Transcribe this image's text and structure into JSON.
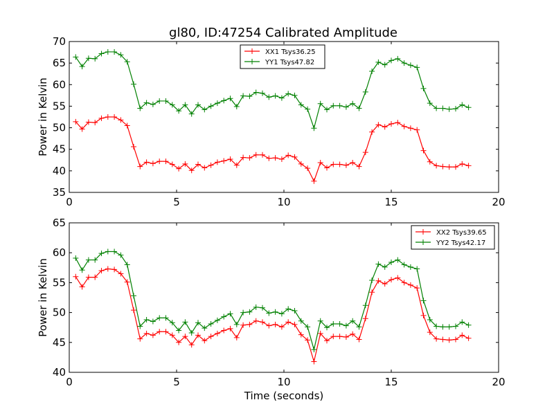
{
  "figure": {
    "title": "gl80, ID:47254 Calibrated Amplitude"
  },
  "chart_data": [
    {
      "type": "line",
      "title": "gl80, ID:47254 Calibrated Amplitude",
      "xlabel": "",
      "ylabel": "Power in Kelvin",
      "xlim": [
        0,
        20
      ],
      "ylim": [
        35,
        70
      ],
      "xticks": [
        0,
        5,
        10,
        15,
        20
      ],
      "yticks": [
        35,
        40,
        45,
        50,
        55,
        60,
        65,
        70
      ],
      "legend_position": "top-center",
      "x": [
        0.3,
        0.6,
        0.9,
        1.2,
        1.5,
        1.8,
        2.1,
        2.4,
        2.7,
        3.0,
        3.3,
        3.6,
        3.9,
        4.2,
        4.5,
        4.8,
        5.1,
        5.4,
        5.7,
        6.0,
        6.3,
        6.6,
        6.9,
        7.2,
        7.5,
        7.8,
        8.1,
        8.4,
        8.7,
        9.0,
        9.3,
        9.6,
        9.9,
        10.2,
        10.5,
        10.8,
        11.1,
        11.4,
        11.7,
        12.0,
        12.3,
        12.6,
        12.9,
        13.2,
        13.5,
        13.8,
        14.1,
        14.4,
        14.7,
        15.0,
        15.3,
        15.6,
        15.9,
        16.2,
        16.5,
        16.8,
        17.1,
        17.4,
        17.7,
        18.0,
        18.3,
        18.6
      ],
      "series": [
        {
          "name": "XX1 Tsys36.25",
          "color": "#ff0000",
          "values": [
            51.4,
            49.7,
            51.3,
            51.2,
            52.2,
            52.5,
            52.5,
            51.8,
            50.5,
            45.6,
            41.0,
            42.0,
            41.7,
            42.2,
            42.2,
            41.5,
            40.5,
            41.6,
            40.1,
            41.5,
            40.7,
            41.3,
            42.0,
            42.3,
            42.7,
            41.3,
            43.1,
            43.0,
            43.7,
            43.7,
            42.9,
            43.0,
            42.7,
            43.6,
            43.2,
            41.6,
            40.6,
            37.6,
            41.9,
            40.7,
            41.5,
            41.5,
            41.3,
            41.9,
            41.0,
            44.3,
            49.0,
            50.7,
            50.2,
            50.9,
            51.2,
            50.3,
            49.9,
            49.5,
            44.7,
            42.1,
            41.2,
            41.0,
            40.9,
            40.9,
            41.6,
            41.2
          ]
        },
        {
          "name": "YY1 Tsys47.82",
          "color": "#008000",
          "values": [
            66.4,
            64.2,
            66.1,
            66.0,
            67.2,
            67.6,
            67.6,
            66.9,
            65.3,
            60.1,
            54.5,
            55.8,
            55.4,
            56.2,
            56.2,
            55.3,
            53.9,
            55.3,
            53.2,
            55.3,
            54.2,
            55.0,
            55.7,
            56.3,
            56.8,
            54.9,
            57.4,
            57.3,
            58.2,
            58.0,
            57.1,
            57.4,
            56.9,
            57.9,
            57.5,
            55.3,
            54.3,
            49.9,
            55.6,
            54.2,
            55.1,
            55.1,
            54.8,
            55.6,
            54.5,
            58.3,
            63.1,
            65.2,
            64.6,
            65.6,
            66.0,
            65.0,
            64.5,
            64.0,
            59.1,
            55.7,
            54.5,
            54.5,
            54.3,
            54.4,
            55.3,
            54.7
          ]
        }
      ]
    },
    {
      "type": "line",
      "title": "",
      "xlabel": "Time (seconds)",
      "ylabel": "Power in Kelvin",
      "xlim": [
        0,
        20
      ],
      "ylim": [
        40,
        65
      ],
      "xticks": [
        0,
        5,
        10,
        15,
        20
      ],
      "yticks": [
        40,
        45,
        50,
        55,
        60,
        65
      ],
      "legend_position": "top-right",
      "x": [
        0.3,
        0.6,
        0.9,
        1.2,
        1.5,
        1.8,
        2.1,
        2.4,
        2.7,
        3.0,
        3.3,
        3.6,
        3.9,
        4.2,
        4.5,
        4.8,
        5.1,
        5.4,
        5.7,
        6.0,
        6.3,
        6.6,
        6.9,
        7.2,
        7.5,
        7.8,
        8.1,
        8.4,
        8.7,
        9.0,
        9.3,
        9.6,
        9.9,
        10.2,
        10.5,
        10.8,
        11.1,
        11.4,
        11.7,
        12.0,
        12.3,
        12.6,
        12.9,
        13.2,
        13.5,
        13.8,
        14.1,
        14.4,
        14.7,
        15.0,
        15.3,
        15.6,
        15.9,
        16.2,
        16.5,
        16.8,
        17.1,
        17.4,
        17.7,
        18.0,
        18.3,
        18.6
      ],
      "series": [
        {
          "name": "XX2 Tsys39.65",
          "color": "#ff0000",
          "values": [
            56.0,
            54.3,
            55.9,
            55.9,
            57.0,
            57.3,
            57.2,
            56.5,
            55.1,
            50.4,
            45.6,
            46.5,
            46.2,
            46.8,
            46.8,
            46.2,
            45.0,
            46.0,
            44.6,
            46.2,
            45.3,
            46.0,
            46.5,
            47.0,
            47.3,
            45.8,
            47.9,
            48.0,
            48.6,
            48.4,
            47.8,
            48.0,
            47.6,
            48.4,
            48.0,
            46.3,
            45.4,
            41.8,
            46.5,
            45.3,
            46.0,
            46.0,
            45.9,
            46.4,
            45.5,
            49.0,
            53.4,
            55.3,
            54.8,
            55.5,
            55.8,
            55.0,
            54.6,
            54.1,
            49.5,
            46.7,
            45.6,
            45.5,
            45.4,
            45.5,
            46.2,
            45.7
          ]
        },
        {
          "name": "YY2 Tsys42.17",
          "color": "#008000",
          "values": [
            59.1,
            57.1,
            58.8,
            58.8,
            59.9,
            60.2,
            60.2,
            59.6,
            58.0,
            52.8,
            47.7,
            48.8,
            48.5,
            49.1,
            49.1,
            48.3,
            47.0,
            48.4,
            46.6,
            48.3,
            47.4,
            48.1,
            48.7,
            49.3,
            49.8,
            48.0,
            50.0,
            50.1,
            50.9,
            50.8,
            49.9,
            50.1,
            49.8,
            50.6,
            50.3,
            48.6,
            47.6,
            43.8,
            48.6,
            47.5,
            48.1,
            48.1,
            47.8,
            48.6,
            47.6,
            51.2,
            55.4,
            58.1,
            57.6,
            58.4,
            58.8,
            58.0,
            57.6,
            57.3,
            52.0,
            48.8,
            47.7,
            47.6,
            47.6,
            47.7,
            48.4,
            47.9
          ]
        }
      ]
    }
  ]
}
